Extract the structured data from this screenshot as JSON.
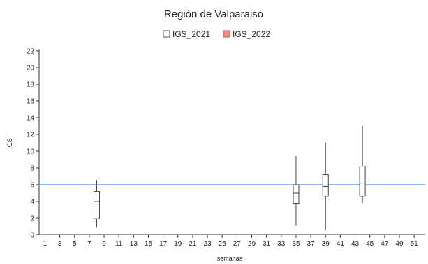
{
  "chart_data": {
    "type": "boxplot",
    "title": "Región de Valparaiso",
    "xlabel": "semanas",
    "ylabel": "IGS",
    "xlim": [
      0.2,
      52.5
    ],
    "ylim": [
      0,
      22
    ],
    "x_ticks": [
      1,
      3,
      5,
      7,
      9,
      11,
      13,
      15,
      17,
      19,
      21,
      23,
      25,
      27,
      29,
      31,
      33,
      35,
      37,
      39,
      41,
      43,
      45,
      47,
      49,
      51
    ],
    "y_ticks": [
      0,
      2,
      4,
      6,
      8,
      10,
      12,
      14,
      16,
      18,
      20,
      22
    ],
    "grid": false,
    "legend_position": "top-center",
    "legend": [
      {
        "label": "IGS_2021",
        "swatch_color": "#ffffff",
        "border_color": "#555555"
      },
      {
        "label": "IGS_2022",
        "swatch_color": "#f28b8b",
        "border_color": "#d9534f"
      }
    ],
    "reference_line": {
      "y": 6,
      "color": "#5b8fd9"
    },
    "series": [
      {
        "name": "IGS_2021",
        "boxes": [
          {
            "week": 8,
            "min": 0.9,
            "q1": 1.9,
            "median": 4.0,
            "q3": 5.2,
            "max": 6.5
          },
          {
            "week": 35,
            "min": 1.1,
            "q1": 3.7,
            "median": 5.0,
            "q3": 6.0,
            "max": 9.4
          },
          {
            "week": 39,
            "min": 0.6,
            "q1": 4.6,
            "median": 5.8,
            "q3": 7.2,
            "max": 11.0
          },
          {
            "week": 44,
            "min": 3.8,
            "q1": 4.6,
            "median": 6.2,
            "q3": 8.2,
            "max": 13.0
          }
        ]
      }
    ]
  }
}
